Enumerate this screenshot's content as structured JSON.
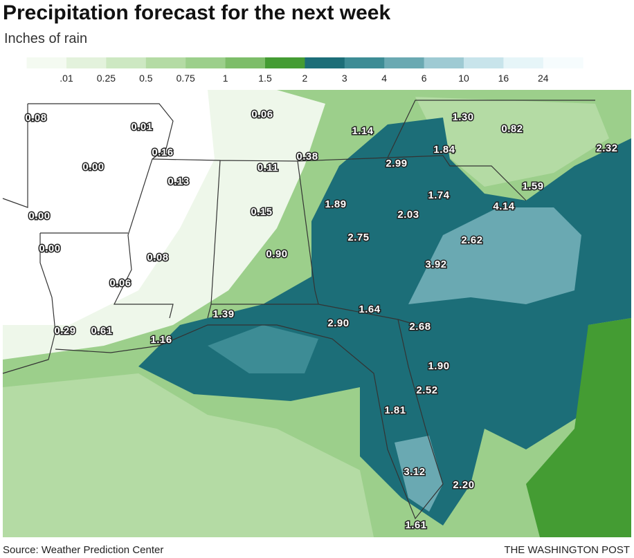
{
  "header": {
    "title": "Precipitation forecast for the next week",
    "subtitle": "Inches of rain"
  },
  "legend": {
    "labels": [
      ".01",
      "0.25",
      "0.5",
      "0.75",
      "1",
      "1.5",
      "2",
      "3",
      "4",
      "6",
      "10",
      "16",
      "24"
    ],
    "colors": [
      "#f4faf1",
      "#e3f2dc",
      "#cde8c2",
      "#b4dba4",
      "#9ccf8b",
      "#7dbd69",
      "#449c33",
      "#1c6e78",
      "#3d8c95",
      "#6aa9b2",
      "#9ecad3",
      "#c8e4eb",
      "#e6f5f8",
      "#f6fcfd"
    ]
  },
  "map": {
    "labels": [
      "0.08",
      "0.01",
      "0.06",
      "1.30",
      "0.82",
      "1.14",
      "0.16",
      "0.38",
      "0.11",
      "2.99",
      "1.84",
      "2.32",
      "0.00",
      "0.13",
      "1.74",
      "1.59",
      "1.89",
      "4.14",
      "0.00",
      "0.15",
      "2.03",
      "2.75",
      "2.62",
      "0.00",
      "0.08",
      "0.90",
      "3.92",
      "0.06",
      "1.64",
      "1.39",
      "2.90",
      "2.68",
      "0.29",
      "0.61",
      "1.16",
      "1.90",
      "2.52",
      "1.81",
      "3.12",
      "2.20",
      "1.61"
    ]
  },
  "footer": {
    "source": "Source: Weather Prediction Center",
    "credit": "THE WASHINGTON POST"
  }
}
